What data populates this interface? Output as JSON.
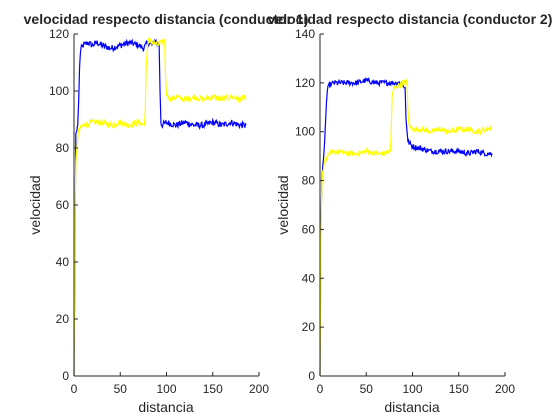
{
  "chart_data": [
    {
      "type": "line",
      "title": "velocidad respecto distancia (conductor 1)",
      "xlabel": "distancia",
      "ylabel": "velocidad",
      "xlim": [
        0,
        200
      ],
      "ylim": [
        0,
        120
      ],
      "xticks": [
        0,
        50,
        100,
        150,
        200
      ],
      "yticks": [
        0,
        20,
        40,
        60,
        80,
        100,
        120
      ],
      "grid": false,
      "series": [
        {
          "color": "#0000ff",
          "x": [
            0,
            2,
            3,
            4,
            5,
            6,
            7,
            8,
            10,
            15,
            20,
            25,
            30,
            40,
            50,
            60,
            70,
            75,
            80,
            85,
            88,
            90,
            92,
            93,
            94,
            95,
            100,
            110,
            120,
            130,
            140,
            150,
            160,
            170,
            180,
            186
          ],
          "y": [
            0,
            85,
            86,
            88,
            96,
            108,
            114,
            115,
            116,
            117,
            116,
            117,
            116,
            115,
            116,
            117,
            116,
            115,
            117,
            116,
            118,
            116,
            117,
            100,
            89,
            88,
            89,
            88,
            89,
            88,
            88,
            89,
            88,
            89,
            88,
            88
          ]
        },
        {
          "color": "#ffff00",
          "x": [
            0,
            1,
            1.5,
            2,
            3,
            5,
            10,
            20,
            30,
            40,
            50,
            60,
            70,
            76,
            77,
            78,
            80,
            85,
            90,
            95,
            98,
            99,
            100,
            105,
            110,
            120,
            130,
            140,
            150,
            160,
            170,
            180,
            186
          ],
          "y": [
            0,
            50,
            65,
            75,
            80,
            86,
            88,
            89,
            89,
            88,
            89,
            88,
            89,
            88,
            92,
            108,
            118,
            117,
            116,
            117,
            118,
            105,
            99,
            97,
            98,
            97,
            98,
            97,
            98,
            97,
            98,
            97,
            98
          ]
        }
      ]
    },
    {
      "type": "line",
      "title": "velocidad respecto distancia (conductor 2)",
      "xlabel": "distancia",
      "ylabel": "velocidad",
      "xlim": [
        0,
        200
      ],
      "ylim": [
        0,
        140
      ],
      "xticks": [
        0,
        50,
        100,
        150,
        200
      ],
      "yticks": [
        0,
        20,
        40,
        60,
        80,
        100,
        120,
        140
      ],
      "grid": false,
      "series": [
        {
          "color": "#0000ff",
          "x": [
            0,
            1,
            2,
            3,
            4,
            5,
            6,
            7,
            8,
            10,
            15,
            20,
            30,
            40,
            50,
            60,
            70,
            80,
            88,
            90,
            92,
            93,
            95,
            100,
            110,
            120,
            130,
            140,
            150,
            160,
            170,
            180,
            186
          ],
          "y": [
            0,
            60,
            80,
            86,
            90,
            96,
            104,
            112,
            117,
            119,
            120,
            120,
            120,
            120,
            121,
            120,
            120,
            120,
            120,
            119,
            118,
            105,
            96,
            94,
            93,
            92,
            92,
            92,
            92,
            91,
            92,
            91,
            91
          ],
          "noise": 0.8
        },
        {
          "color": "#ffff00",
          "x": [
            0,
            0.5,
            1,
            1.5,
            2,
            3,
            4,
            5,
            8,
            10,
            20,
            30,
            40,
            50,
            60,
            70,
            76,
            77,
            78,
            80,
            85,
            90,
            94,
            95,
            96,
            100,
            110,
            120,
            130,
            140,
            150,
            160,
            170,
            180,
            186
          ],
          "y": [
            0,
            25,
            50,
            68,
            78,
            84,
            86,
            88,
            90,
            91,
            92,
            91,
            91,
            92,
            91,
            91,
            92,
            100,
            115,
            118,
            119,
            120,
            120,
            110,
            103,
            101,
            101,
            100,
            101,
            100,
            101,
            101,
            100,
            101,
            102
          ]
        }
      ]
    }
  ]
}
